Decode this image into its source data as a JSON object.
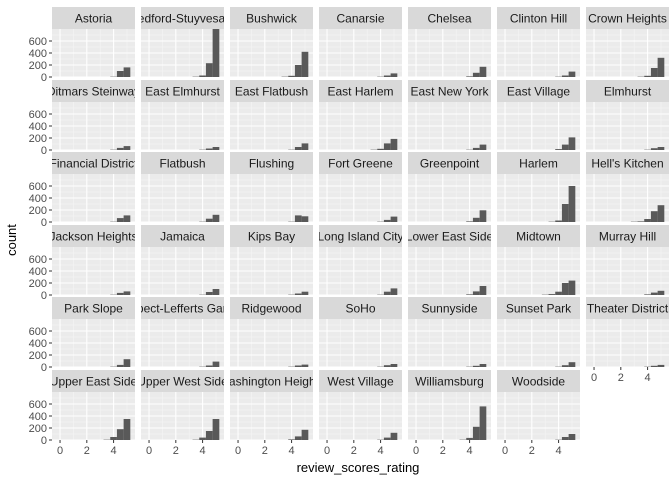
{
  "chart_data": {
    "type": "bar",
    "chart_kind": "faceted-histogram",
    "xlabel": "review_scores_rating",
    "ylabel": "count",
    "xlim": [
      -0.6,
      5.6
    ],
    "ylim": [
      0,
      800
    ],
    "x_ticks": [
      0,
      2,
      4
    ],
    "y_ticks": [
      0,
      200,
      400,
      600
    ],
    "grid": true,
    "facet_columns": 7,
    "bin_starts": [
      2.25,
      2.75,
      3.25,
      3.75,
      4.25,
      4.75
    ],
    "bin_width": 0.5,
    "facets": [
      {
        "name": "Astoria",
        "counts": [
          0,
          0,
          0,
          5,
          100,
          160
        ]
      },
      {
        "name": "Bedford-Stuyvesant",
        "counts": [
          0,
          0,
          5,
          25,
          230,
          830
        ]
      },
      {
        "name": "Bushwick",
        "counts": [
          0,
          0,
          5,
          20,
          200,
          420
        ]
      },
      {
        "name": "Canarsie",
        "counts": [
          0,
          0,
          0,
          5,
          25,
          60
        ]
      },
      {
        "name": "Chelsea",
        "counts": [
          0,
          0,
          0,
          10,
          70,
          170
        ]
      },
      {
        "name": "Clinton Hill",
        "counts": [
          0,
          0,
          0,
          5,
          25,
          90
        ]
      },
      {
        "name": "Crown Heights",
        "counts": [
          0,
          0,
          5,
          20,
          150,
          320
        ]
      },
      {
        "name": "Ditmars Steinway",
        "counts": [
          0,
          0,
          0,
          5,
          35,
          65
        ]
      },
      {
        "name": "East Elmhurst",
        "counts": [
          0,
          0,
          0,
          5,
          25,
          50
        ]
      },
      {
        "name": "East Flatbush",
        "counts": [
          0,
          0,
          0,
          5,
          50,
          110
        ]
      },
      {
        "name": "East Harlem",
        "counts": [
          0,
          0,
          5,
          20,
          110,
          185
        ]
      },
      {
        "name": "East New York",
        "counts": [
          0,
          0,
          0,
          5,
          35,
          90
        ]
      },
      {
        "name": "East Village",
        "counts": [
          0,
          0,
          0,
          15,
          90,
          210
        ]
      },
      {
        "name": "Elmhurst",
        "counts": [
          0,
          0,
          0,
          5,
          30,
          50
        ]
      },
      {
        "name": "Financial District",
        "counts": [
          0,
          0,
          0,
          5,
          65,
          110
        ]
      },
      {
        "name": "Flatbush",
        "counts": [
          0,
          0,
          0,
          5,
          55,
          120
        ]
      },
      {
        "name": "Flushing",
        "counts": [
          0,
          0,
          0,
          5,
          110,
          95
        ]
      },
      {
        "name": "Fort Greene",
        "counts": [
          0,
          0,
          0,
          5,
          35,
          90
        ]
      },
      {
        "name": "Greenpoint",
        "counts": [
          0,
          0,
          0,
          10,
          70,
          195
        ]
      },
      {
        "name": "Harlem",
        "counts": [
          0,
          0,
          5,
          25,
          300,
          600
        ]
      },
      {
        "name": "Hell's Kitchen",
        "counts": [
          0,
          5,
          10,
          50,
          180,
          280
        ]
      },
      {
        "name": "Jackson Heights",
        "counts": [
          0,
          0,
          0,
          5,
          35,
          60
        ]
      },
      {
        "name": "Jamaica",
        "counts": [
          0,
          0,
          0,
          5,
          50,
          100
        ]
      },
      {
        "name": "Kips Bay",
        "counts": [
          0,
          0,
          0,
          5,
          25,
          55
        ]
      },
      {
        "name": "Long Island City",
        "counts": [
          0,
          0,
          0,
          5,
          55,
          110
        ]
      },
      {
        "name": "Lower East Side",
        "counts": [
          0,
          0,
          0,
          10,
          60,
          150
        ]
      },
      {
        "name": "Midtown",
        "counts": [
          0,
          5,
          15,
          55,
          200,
          240
        ]
      },
      {
        "name": "Murray Hill",
        "counts": [
          0,
          0,
          0,
          10,
          40,
          70
        ]
      },
      {
        "name": "Park Slope",
        "counts": [
          0,
          0,
          0,
          5,
          35,
          130
        ]
      },
      {
        "name": "Prospect-Lefferts Gardens",
        "counts": [
          0,
          0,
          0,
          5,
          25,
          90
        ]
      },
      {
        "name": "Ridgewood",
        "counts": [
          0,
          0,
          0,
          5,
          25,
          40
        ]
      },
      {
        "name": "SoHo",
        "counts": [
          0,
          0,
          0,
          5,
          30,
          50
        ]
      },
      {
        "name": "Sunnyside",
        "counts": [
          0,
          0,
          0,
          5,
          20,
          50
        ]
      },
      {
        "name": "Sunset Park",
        "counts": [
          0,
          0,
          0,
          5,
          30,
          80
        ]
      },
      {
        "name": "Theater District",
        "counts": [
          0,
          0,
          0,
          5,
          20,
          35
        ]
      },
      {
        "name": "Upper East Side",
        "counts": [
          0,
          0,
          5,
          50,
          180,
          350
        ]
      },
      {
        "name": "Upper West Side",
        "counts": [
          0,
          0,
          5,
          40,
          150,
          350
        ]
      },
      {
        "name": "Washington Heights",
        "counts": [
          0,
          0,
          0,
          10,
          60,
          170
        ]
      },
      {
        "name": "West Village",
        "counts": [
          0,
          0,
          0,
          5,
          40,
          120
        ]
      },
      {
        "name": "Williamsburg",
        "counts": [
          0,
          0,
          5,
          35,
          220,
          560
        ]
      },
      {
        "name": "Woodside",
        "counts": [
          0,
          0,
          0,
          5,
          50,
          100
        ]
      }
    ]
  },
  "colors": {
    "panel_background": "#ebebeb",
    "grid_major": "#ffffff",
    "grid_minor": "#f5f5f5",
    "strip_background": "#d9d9d9",
    "bar_fill": "#595959",
    "tick_color": "#333333"
  }
}
